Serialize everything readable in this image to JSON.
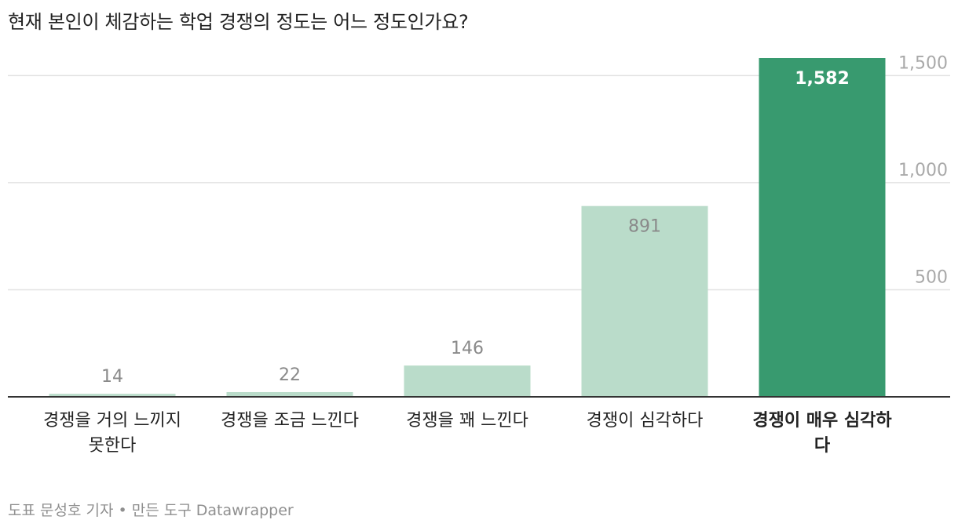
{
  "chart_data": {
    "type": "bar",
    "title": "현재 본인이 체감하는 학업 경쟁의 정도는 어느 정도인가요?",
    "categories": [
      [
        "경쟁을 거의 느끼지",
        "못한다"
      ],
      [
        "경쟁을 조금 느낀다"
      ],
      [
        "경쟁을 꽤 느낀다"
      ],
      [
        "경쟁이 심각하다"
      ],
      [
        "경쟁이 매우 심각하",
        "다"
      ]
    ],
    "values": [
      14,
      22,
      146,
      891,
      1582
    ],
    "value_labels": [
      "14",
      "22",
      "146",
      "891",
      "1,582"
    ],
    "highlight_index": 4,
    "y_ticks": [
      500,
      1000,
      1500
    ],
    "y_tick_labels": [
      "500",
      "1,000",
      "1,500"
    ],
    "ylim": [
      0,
      1582
    ],
    "y_axis_position": "right",
    "grid": true,
    "colors": {
      "bar": "#badcca",
      "highlight": "#389a6f",
      "value_label": "#8a8a8a",
      "highlight_label": "#ffffff"
    }
  },
  "source": "도표 문성호 기자 • 만든 도구 Datawrapper"
}
